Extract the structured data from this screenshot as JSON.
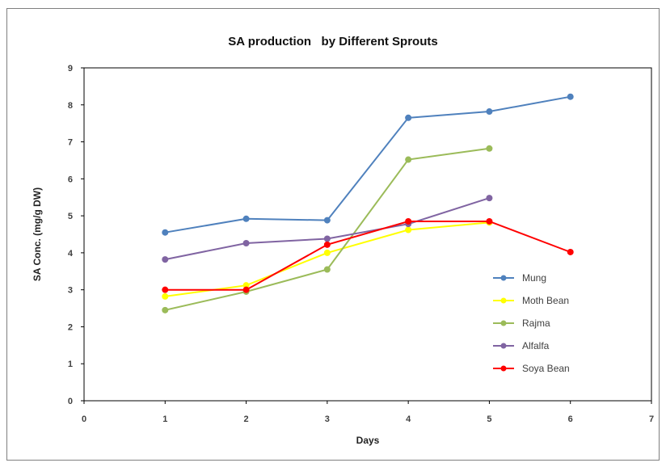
{
  "chart_data": {
    "type": "line",
    "title": "SA production   by Different Sprouts",
    "xlabel": "Days",
    "ylabel": "SA Conc. (mg/g DW)",
    "xlim": [
      0,
      7
    ],
    "ylim": [
      0,
      9
    ],
    "xticks": [
      "0",
      "1",
      "2",
      "3",
      "4",
      "5",
      "6",
      "7"
    ],
    "yticks": [
      "0",
      "1",
      "2",
      "3",
      "4",
      "5",
      "6",
      "7",
      "8",
      "9"
    ],
    "grid": false,
    "legend_position": "right",
    "series": [
      {
        "name": "Mung",
        "color": "#4f81bd",
        "x": [
          1,
          2,
          3,
          4,
          5,
          6
        ],
        "y": [
          4.55,
          4.92,
          4.88,
          7.65,
          7.82,
          8.22
        ]
      },
      {
        "name": "Moth Bean",
        "color": "#ffff00",
        "x": [
          1,
          2,
          3,
          4,
          5
        ],
        "y": [
          2.82,
          3.12,
          4.0,
          4.62,
          4.82
        ]
      },
      {
        "name": "Rajma",
        "color": "#9bbb59",
        "x": [
          1,
          2,
          3,
          4,
          5
        ],
        "y": [
          2.45,
          2.95,
          3.55,
          6.52,
          6.82
        ]
      },
      {
        "name": "Alfalfa",
        "color": "#8064a2",
        "x": [
          1,
          2,
          3,
          4,
          5
        ],
        "y": [
          3.82,
          4.26,
          4.38,
          4.78,
          5.48
        ]
      },
      {
        "name": "Soya Bean",
        "color": "#ff0000",
        "x": [
          1,
          2,
          3,
          4,
          5,
          6
        ],
        "y": [
          3.0,
          3.0,
          4.22,
          4.85,
          4.85,
          4.02
        ]
      }
    ]
  }
}
